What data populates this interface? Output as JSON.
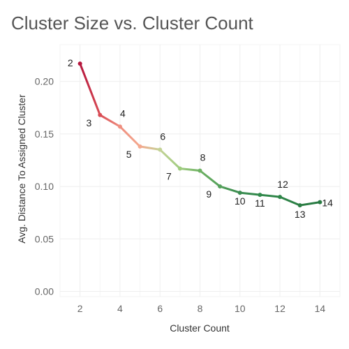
{
  "chart_data": {
    "type": "line",
    "title": "Cluster Size vs. Cluster Count",
    "xlabel": "Cluster Count",
    "ylabel": "Avg. Distance To Assigned Cluster",
    "x": [
      2,
      3,
      4,
      5,
      6,
      7,
      8,
      9,
      10,
      11,
      12,
      13,
      14
    ],
    "y": [
      0.217,
      0.168,
      0.157,
      0.138,
      0.135,
      0.117,
      0.115,
      0.1,
      0.094,
      0.092,
      0.09,
      0.082,
      0.085
    ],
    "point_labels": [
      "2",
      "3",
      "4",
      "5",
      "6",
      "7",
      "8",
      "9",
      "10",
      "11",
      "12",
      "13",
      "14"
    ],
    "xlim": [
      1,
      15
    ],
    "ylim": [
      -0.005,
      0.235
    ],
    "x_ticks": [
      2,
      4,
      6,
      8,
      10,
      12,
      14
    ],
    "x_tick_labels": [
      "2",
      "4",
      "6",
      "8",
      "10",
      "12",
      "14"
    ],
    "y_ticks": [
      0,
      0.05,
      0.1,
      0.15,
      0.2
    ],
    "y_tick_labels": [
      "0.00",
      "0.05",
      "0.10",
      "0.15",
      "0.20"
    ],
    "grid": true,
    "colors": [
      "#b5163d",
      "#d94d55",
      "#ef8f80",
      "#f4a98f",
      "#c3d296",
      "#9fcc7f",
      "#6eb163",
      "#54a05a",
      "#3a8b50",
      "#328a4c",
      "#2e8548",
      "#2c7e45",
      "#287a42"
    ]
  }
}
